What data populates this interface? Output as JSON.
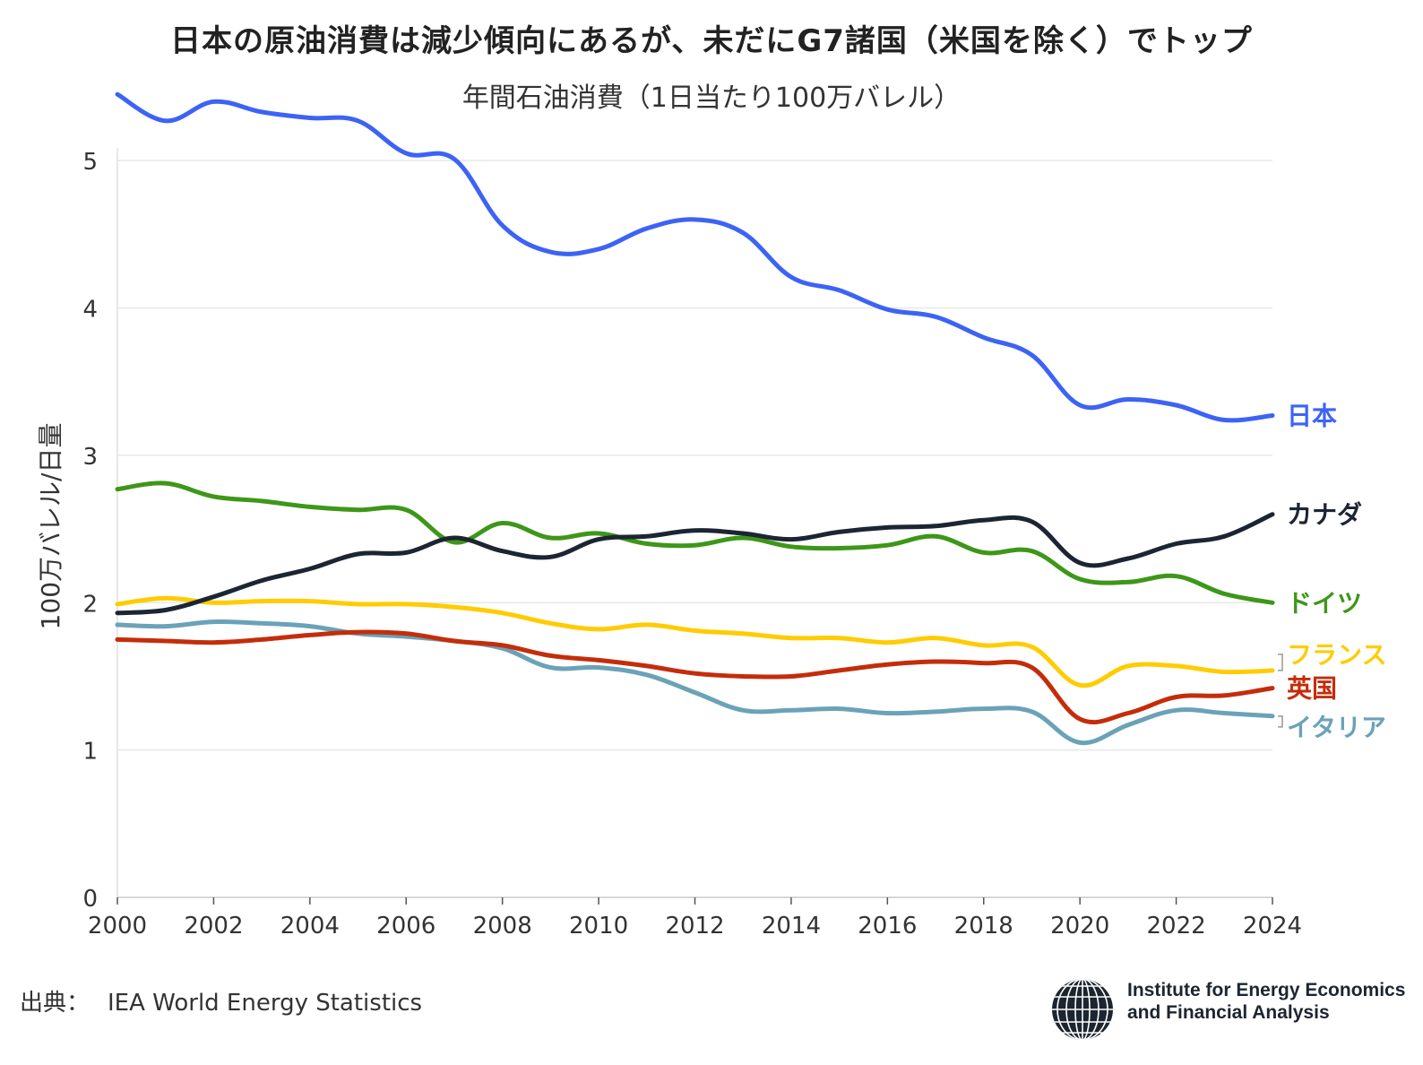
{
  "title": "日本の原油消費は減少傾向にあるが、未だにG7諸国（米国を除く）でトップ",
  "subtitle": "年間石油消費（1日当たり100万バレル）",
  "footer": {
    "source_label": "出典：",
    "source": "IEA World Energy Statistics"
  },
  "logo": {
    "icon": "globe-icon",
    "line1": "Institute for Energy Economics",
    "line2": "and Financial Analysis"
  },
  "chart_data": {
    "type": "line",
    "title": "日本の原油消費は減少傾向にあるが、未だにG7諸国（米国を除く）でトップ",
    "subtitle": "年間石油消費（1日当たり100万バレル）",
    "xlabel": "",
    "ylabel": "100万バレル/日量",
    "xlim": [
      2000,
      2024
    ],
    "ylim": [
      0,
      5.5
    ],
    "x_ticks": [
      2000,
      2002,
      2004,
      2006,
      2008,
      2010,
      2012,
      2014,
      2016,
      2018,
      2020,
      2022,
      2024
    ],
    "y_ticks": [
      0,
      1,
      2,
      3,
      4,
      5
    ],
    "grid": "horizontal",
    "legend": "direct labels at right end of lines",
    "x": [
      2000,
      2001,
      2002,
      2003,
      2004,
      2005,
      2006,
      2007,
      2008,
      2009,
      2010,
      2011,
      2012,
      2013,
      2014,
      2015,
      2016,
      2017,
      2018,
      2019,
      2020,
      2021,
      2022,
      2023,
      2024
    ],
    "series": [
      {
        "name": "日本",
        "color": "#3d63f5",
        "values": [
          5.45,
          5.27,
          5.4,
          5.33,
          5.29,
          5.27,
          5.05,
          5.01,
          4.56,
          4.38,
          4.4,
          4.54,
          4.6,
          4.51,
          4.21,
          4.12,
          3.99,
          3.94,
          3.8,
          3.68,
          3.34,
          3.38,
          3.34,
          3.24,
          3.27
        ]
      },
      {
        "name": "カナダ",
        "color": "#1c2533",
        "values": [
          1.93,
          1.95,
          2.04,
          2.15,
          2.23,
          2.33,
          2.34,
          2.44,
          2.35,
          2.31,
          2.43,
          2.45,
          2.49,
          2.47,
          2.43,
          2.48,
          2.51,
          2.52,
          2.56,
          2.55,
          2.27,
          2.3,
          2.4,
          2.45,
          2.6
        ]
      },
      {
        "name": "ドイツ",
        "color": "#3d9718",
        "values": [
          2.77,
          2.81,
          2.72,
          2.69,
          2.65,
          2.63,
          2.63,
          2.41,
          2.54,
          2.44,
          2.47,
          2.4,
          2.39,
          2.44,
          2.38,
          2.37,
          2.39,
          2.45,
          2.34,
          2.35,
          2.16,
          2.14,
          2.18,
          2.06,
          2.0
        ]
      },
      {
        "name": "フランス",
        "color": "#ffcc00",
        "values": [
          1.99,
          2.03,
          2.0,
          2.01,
          2.01,
          1.99,
          1.99,
          1.97,
          1.93,
          1.86,
          1.82,
          1.85,
          1.81,
          1.79,
          1.76,
          1.76,
          1.73,
          1.76,
          1.71,
          1.7,
          1.44,
          1.57,
          1.57,
          1.53,
          1.54
        ]
      },
      {
        "name": "英国",
        "color": "#c42d0a",
        "values": [
          1.75,
          1.74,
          1.73,
          1.75,
          1.78,
          1.8,
          1.79,
          1.74,
          1.71,
          1.64,
          1.61,
          1.57,
          1.52,
          1.5,
          1.5,
          1.54,
          1.58,
          1.6,
          1.59,
          1.56,
          1.21,
          1.25,
          1.36,
          1.37,
          1.42
        ]
      },
      {
        "name": "イタリア",
        "color": "#6aa2b8",
        "values": [
          1.85,
          1.84,
          1.87,
          1.86,
          1.84,
          1.79,
          1.77,
          1.74,
          1.69,
          1.56,
          1.56,
          1.51,
          1.39,
          1.27,
          1.27,
          1.28,
          1.25,
          1.26,
          1.28,
          1.26,
          1.05,
          1.17,
          1.27,
          1.25,
          1.23
        ]
      }
    ]
  }
}
